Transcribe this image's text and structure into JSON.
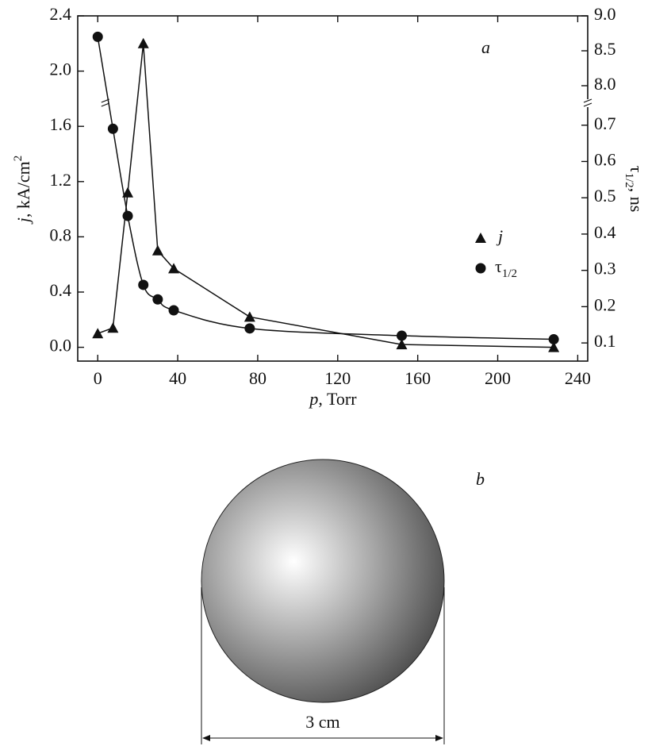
{
  "chart_data": {
    "type": "line",
    "annotation": "a",
    "xlabel": "p, Torr",
    "ylabel": "j, kA/cm2",
    "y2label": "τ1/2, ns",
    "x": [
      0,
      7.6,
      15,
      22.8,
      30,
      38,
      76,
      152,
      228
    ],
    "series": [
      {
        "name": "j",
        "color": "#111111",
        "marker": "triangle",
        "values": [
          0.1,
          0.14,
          1.12,
          2.2,
          0.7,
          0.57,
          0.22,
          0.02,
          0.0
        ]
      },
      {
        "name": "τ1/2",
        "color": "#111111",
        "marker": "circle",
        "axis": "y2",
        "values": [
          8.7,
          0.69,
          0.45,
          0.26,
          0.22,
          0.19,
          0.14,
          0.12,
          0.11
        ]
      }
    ],
    "xlim": [
      -10,
      245
    ],
    "xticks": [
      0,
      40,
      80,
      120,
      160,
      200,
      240
    ],
    "ylim": [
      -0.1,
      2.4
    ],
    "yticks": [
      {
        "value": 0,
        "label": "0.0"
      },
      0.4,
      0.8,
      1.2,
      1.6,
      {
        "value": 2,
        "label": "2.0"
      },
      2.4
    ],
    "y2lim": [
      0.05,
      9.0
    ],
    "y2break": [
      0.8,
      8.0
    ],
    "y2ticks": [
      0.1,
      0.2,
      0.3,
      0.4,
      0.5,
      0.6,
      0.7,
      {
        "value": 8,
        "label": "8.0"
      },
      8.5,
      {
        "value": 9,
        "label": "9.0"
      }
    ],
    "legend": "right"
  },
  "diagram": {
    "label": "b",
    "dimension": "3 cm"
  }
}
